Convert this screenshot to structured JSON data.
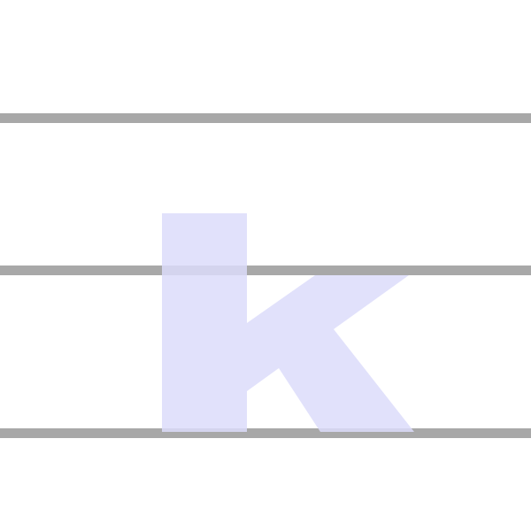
{
  "glyph": {
    "character": "k",
    "fill_color": "#dcdcfa"
  },
  "guide_lines": {
    "color": "#a8a8a8",
    "names": [
      "ascender-line",
      "x-height-line",
      "baseline"
    ]
  }
}
